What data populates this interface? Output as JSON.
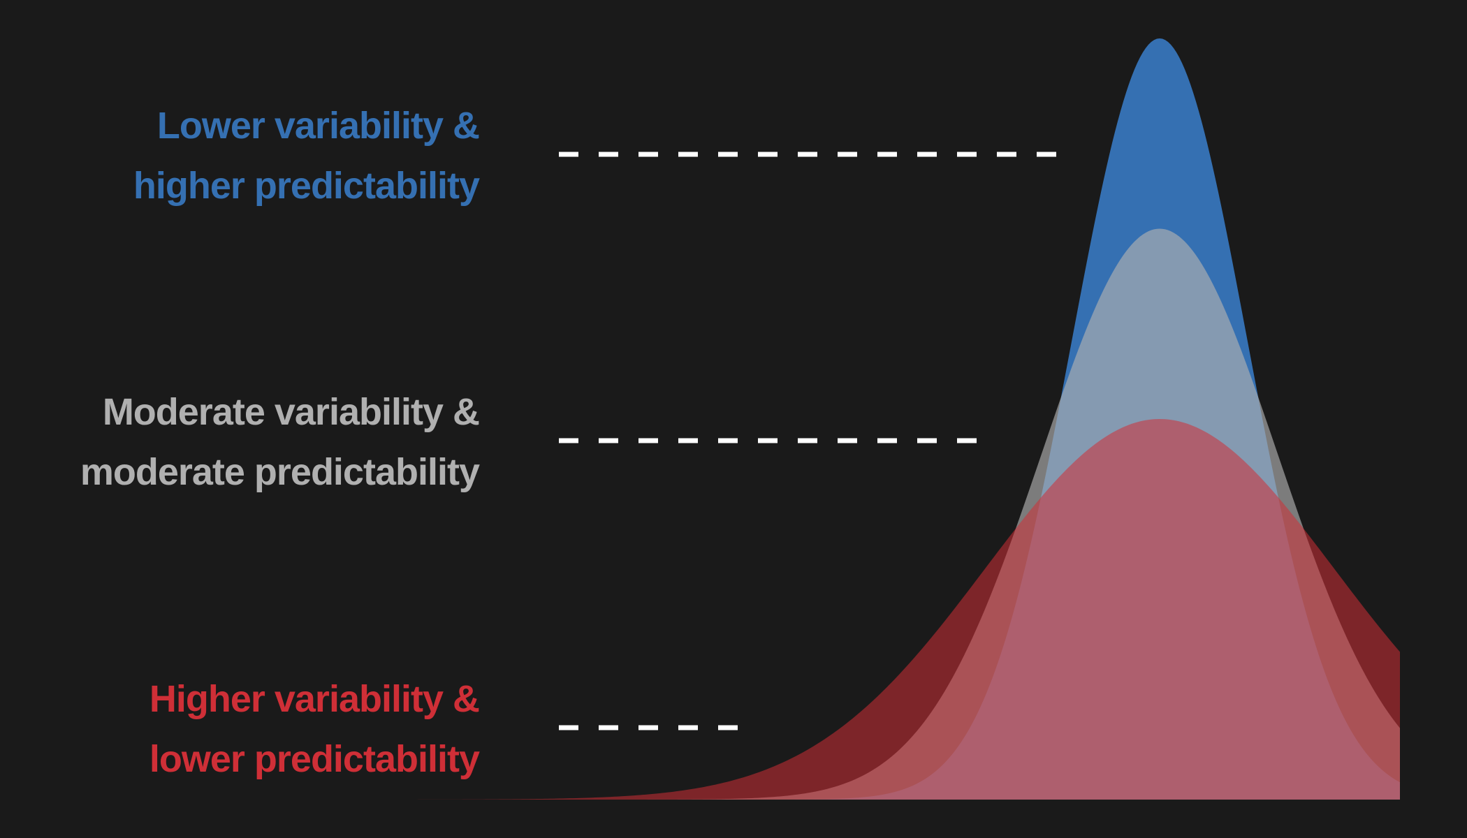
{
  "colors": {
    "background": "#1a1a1a",
    "low_variability": "#3570b2",
    "moderate_variability": "#b0b0b0",
    "high_variability": "#cf2f37",
    "dash": "#ffffff"
  },
  "labels": {
    "low": {
      "line1": "Lower variability &",
      "line2": "higher predictability"
    },
    "moderate": {
      "line1": "Moderate variability &",
      "line2": "moderate predictability"
    },
    "high": {
      "line1": "Higher variability &",
      "line2": "lower predictability"
    }
  },
  "curves": [
    {
      "id": "high",
      "relative_sd": 2.0,
      "relative_peak": 0.5
    },
    {
      "id": "moderate",
      "relative_sd": 1.35,
      "relative_peak": 0.75
    },
    {
      "id": "low",
      "relative_sd": 1.0,
      "relative_peak": 1.0
    }
  ]
}
